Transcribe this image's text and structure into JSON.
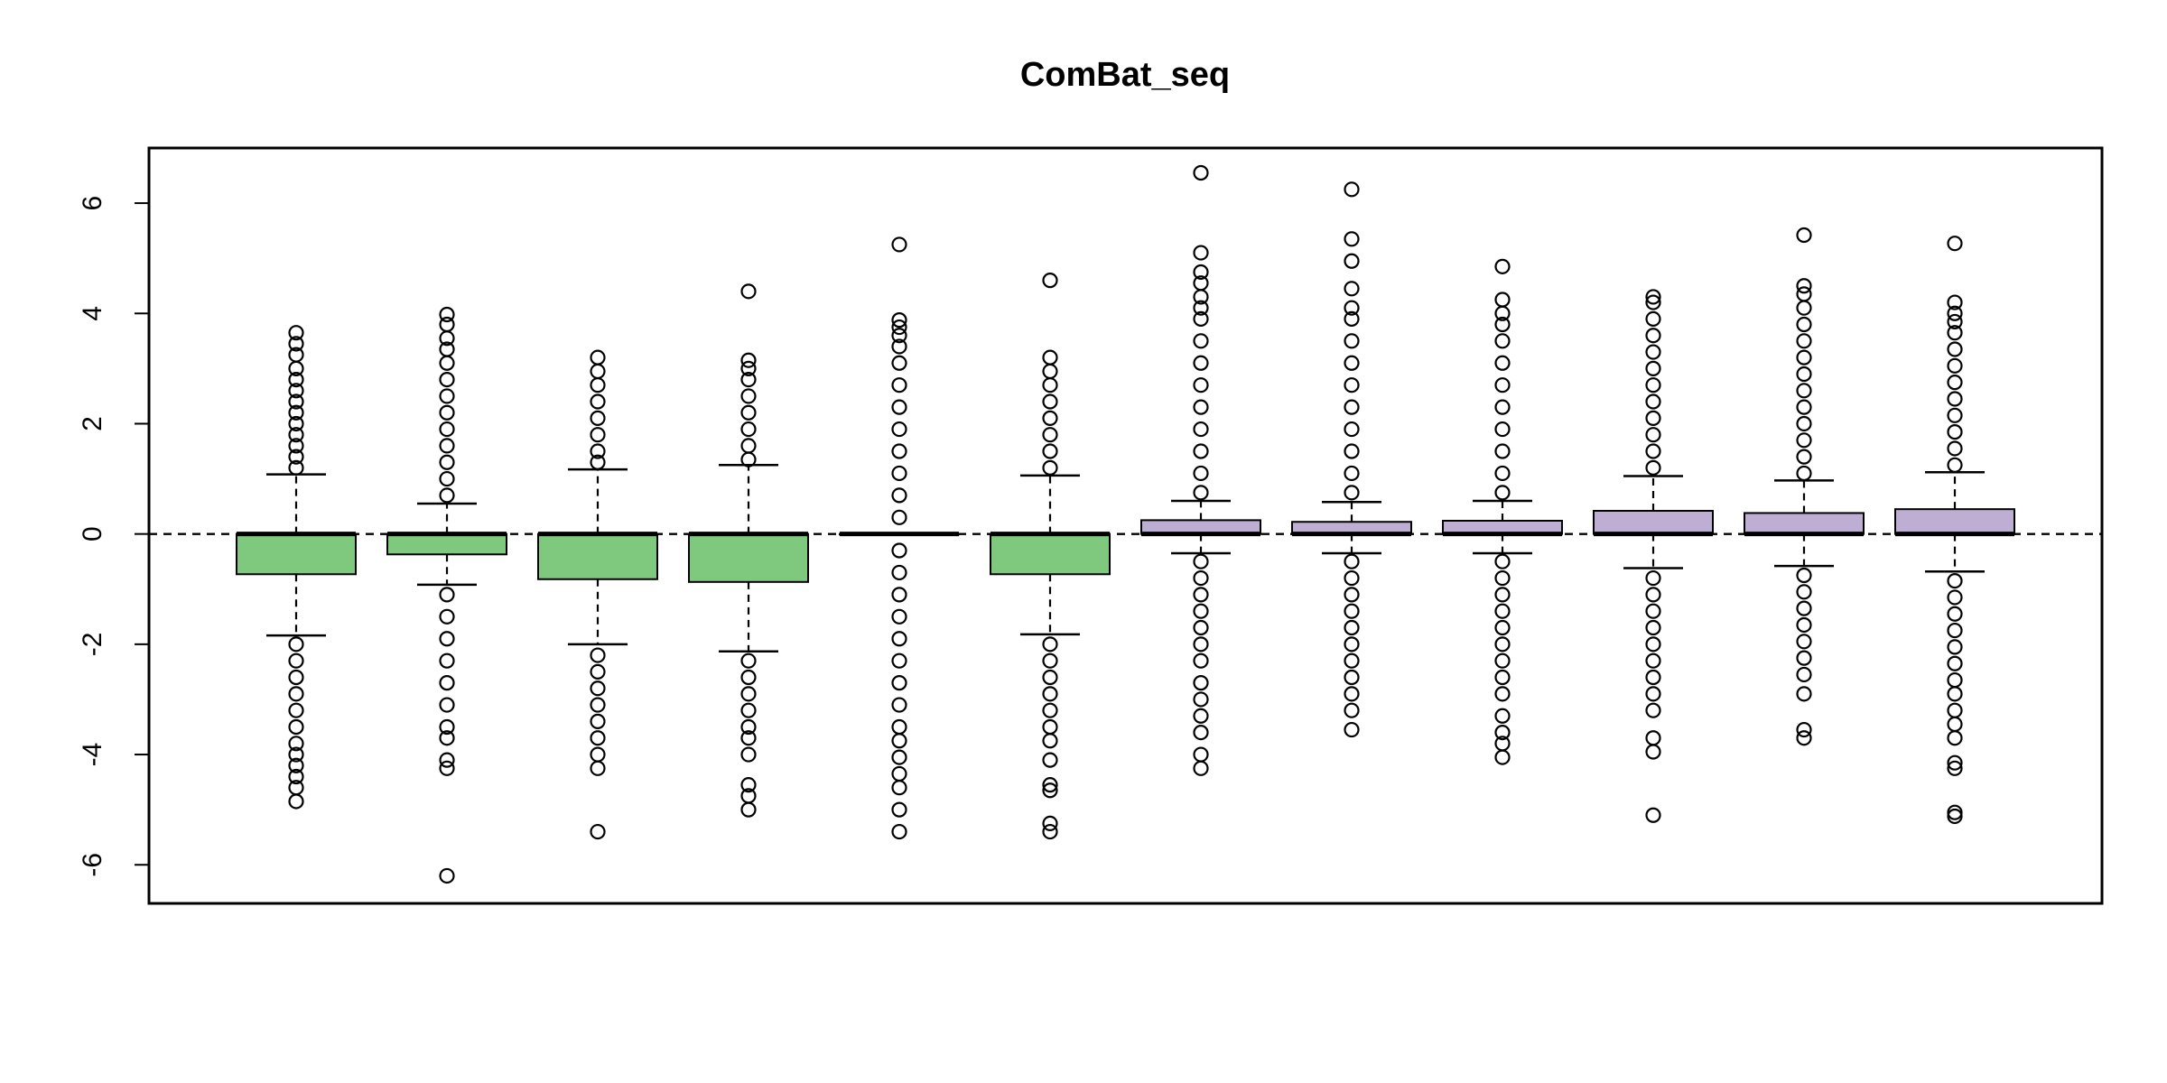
{
  "chart_data": {
    "type": "box",
    "title": "ComBat_seq",
    "xlabel": "",
    "ylabel": "",
    "ylim": [
      -6.7,
      7.0
    ],
    "yticks": [
      -6,
      -4,
      -2,
      0,
      2,
      4,
      6
    ],
    "yticklabels": [
      "-6",
      "-4",
      "-2",
      "0",
      "2",
      "4",
      "6"
    ],
    "reference_line": 0,
    "grid": false,
    "legend": "none",
    "colors": {
      "group_a": "#7fc97f",
      "group_b": "#beaed4",
      "line": "#000000"
    },
    "boxes": [
      {
        "group": "a",
        "whisker_low": -1.84,
        "q1": -0.73,
        "median": 0.0,
        "q3": 0.0,
        "whisker_high": 1.08,
        "outliers_high": [
          1.2,
          1.4,
          1.6,
          1.8,
          2.0,
          2.2,
          2.4,
          2.6,
          2.8,
          3.0,
          3.25,
          3.45,
          3.65
        ],
        "outliers_low": [
          -2.0,
          -2.3,
          -2.6,
          -2.9,
          -3.2,
          -3.5,
          -3.8,
          -4.0,
          -4.2,
          -4.4,
          -4.6,
          -4.85
        ]
      },
      {
        "group": "a",
        "whisker_low": -0.92,
        "q1": -0.37,
        "median": 0.0,
        "q3": 0.0,
        "whisker_high": 0.55,
        "outliers_high": [
          0.7,
          1.0,
          1.3,
          1.6,
          1.9,
          2.2,
          2.5,
          2.8,
          3.1,
          3.35,
          3.55,
          3.8,
          3.98
        ],
        "outliers_low": [
          -1.1,
          -1.5,
          -1.9,
          -2.3,
          -2.7,
          -3.1,
          -3.5,
          -3.7,
          -4.1,
          -4.25,
          -6.2
        ]
      },
      {
        "group": "a",
        "whisker_low": -2.0,
        "q1": -0.82,
        "median": 0.0,
        "q3": 0.0,
        "whisker_high": 1.17,
        "outliers_high": [
          1.3,
          1.5,
          1.8,
          2.1,
          2.4,
          2.7,
          2.95,
          3.2
        ],
        "outliers_low": [
          -2.2,
          -2.5,
          -2.8,
          -3.1,
          -3.4,
          -3.7,
          -4.0,
          -4.25,
          -5.4
        ]
      },
      {
        "group": "a",
        "whisker_low": -2.13,
        "q1": -0.87,
        "median": 0.0,
        "q3": 0.0,
        "whisker_high": 1.25,
        "outliers_high": [
          1.35,
          1.6,
          1.9,
          2.2,
          2.5,
          2.8,
          3.0,
          3.15,
          4.4
        ],
        "outliers_low": [
          -2.3,
          -2.6,
          -2.9,
          -3.2,
          -3.5,
          -3.7,
          -4.0,
          -4.55,
          -4.75,
          -5.0
        ]
      },
      {
        "group": "a",
        "whisker_low": 0.0,
        "q1": 0.0,
        "median": 0.0,
        "q3": 0.0,
        "whisker_high": 0.0,
        "outliers_high": [
          0.3,
          0.7,
          1.1,
          1.5,
          1.9,
          2.3,
          2.7,
          3.1,
          3.4,
          3.6,
          3.75,
          3.88,
          5.25
        ],
        "outliers_low": [
          -0.3,
          -0.7,
          -1.1,
          -1.5,
          -1.9,
          -2.3,
          -2.7,
          -3.1,
          -3.5,
          -3.75,
          -4.05,
          -4.35,
          -4.6,
          -5.0,
          -5.4
        ]
      },
      {
        "group": "a",
        "whisker_low": -1.82,
        "q1": -0.73,
        "median": 0.0,
        "q3": 0.0,
        "whisker_high": 1.06,
        "outliers_high": [
          1.2,
          1.5,
          1.8,
          2.1,
          2.4,
          2.7,
          2.95,
          3.2,
          4.6
        ],
        "outliers_low": [
          -2.0,
          -2.3,
          -2.6,
          -2.9,
          -3.2,
          -3.5,
          -3.75,
          -4.1,
          -4.55,
          -4.65,
          -5.25,
          -5.4
        ]
      },
      {
        "group": "b",
        "whisker_low": -0.35,
        "q1": 0.0,
        "median": 0.0,
        "q3": 0.25,
        "whisker_high": 0.6,
        "outliers_high": [
          0.75,
          1.1,
          1.5,
          1.9,
          2.3,
          2.7,
          3.1,
          3.5,
          3.9,
          4.1,
          4.3,
          4.55,
          4.75,
          5.1,
          6.55
        ],
        "outliers_low": [
          -0.5,
          -0.8,
          -1.1,
          -1.4,
          -1.7,
          -2.0,
          -2.3,
          -2.7,
          -3.0,
          -3.3,
          -3.6,
          -4.0,
          -4.25
        ]
      },
      {
        "group": "b",
        "whisker_low": -0.35,
        "q1": 0.0,
        "median": 0.0,
        "q3": 0.22,
        "whisker_high": 0.58,
        "outliers_high": [
          0.75,
          1.1,
          1.5,
          1.9,
          2.3,
          2.7,
          3.1,
          3.5,
          3.9,
          4.1,
          4.45,
          4.95,
          5.35,
          6.25
        ],
        "outliers_low": [
          -0.5,
          -0.8,
          -1.1,
          -1.4,
          -1.7,
          -2.0,
          -2.3,
          -2.6,
          -2.9,
          -3.2,
          -3.55
        ]
      },
      {
        "group": "b",
        "whisker_low": -0.35,
        "q1": 0.0,
        "median": 0.0,
        "q3": 0.24,
        "whisker_high": 0.6,
        "outliers_high": [
          0.75,
          1.1,
          1.5,
          1.9,
          2.3,
          2.7,
          3.1,
          3.5,
          3.8,
          4.0,
          4.25,
          4.85
        ],
        "outliers_low": [
          -0.5,
          -0.8,
          -1.1,
          -1.4,
          -1.7,
          -2.0,
          -2.3,
          -2.6,
          -2.9,
          -3.3,
          -3.6,
          -3.8,
          -4.05
        ]
      },
      {
        "group": "b",
        "whisker_low": -0.62,
        "q1": 0.0,
        "median": 0.0,
        "q3": 0.42,
        "whisker_high": 1.05,
        "outliers_high": [
          1.2,
          1.5,
          1.8,
          2.1,
          2.4,
          2.7,
          3.0,
          3.3,
          3.6,
          3.9,
          4.2,
          4.3
        ],
        "outliers_low": [
          -0.8,
          -1.1,
          -1.4,
          -1.7,
          -2.0,
          -2.3,
          -2.6,
          -2.9,
          -3.2,
          -3.7,
          -3.95,
          -5.1
        ]
      },
      {
        "group": "b",
        "whisker_low": -0.58,
        "q1": 0.0,
        "median": 0.0,
        "q3": 0.38,
        "whisker_high": 0.97,
        "outliers_high": [
          1.1,
          1.4,
          1.7,
          2.0,
          2.3,
          2.6,
          2.9,
          3.2,
          3.5,
          3.8,
          4.1,
          4.35,
          4.5,
          5.42
        ],
        "outliers_low": [
          -0.75,
          -1.05,
          -1.35,
          -1.65,
          -1.95,
          -2.25,
          -2.55,
          -2.9,
          -3.55,
          -3.7
        ]
      },
      {
        "group": "b",
        "whisker_low": -0.68,
        "q1": 0.0,
        "median": 0.0,
        "q3": 0.45,
        "whisker_high": 1.12,
        "outliers_high": [
          1.25,
          1.55,
          1.85,
          2.15,
          2.45,
          2.75,
          3.05,
          3.35,
          3.65,
          3.85,
          4.0,
          4.2,
          5.27
        ],
        "outliers_low": [
          -0.85,
          -1.15,
          -1.45,
          -1.75,
          -2.05,
          -2.35,
          -2.65,
          -2.9,
          -3.2,
          -3.45,
          -3.7,
          -4.15,
          -4.25,
          -5.05,
          -5.12
        ]
      }
    ]
  }
}
